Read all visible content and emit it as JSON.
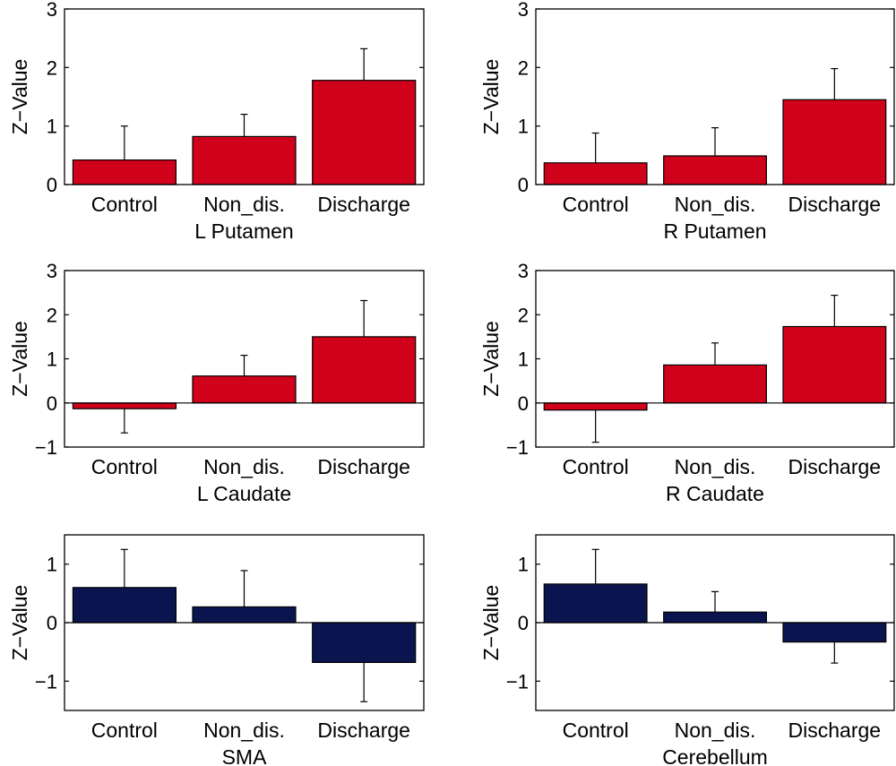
{
  "colors": {
    "red": "#d0021b",
    "navy": "#0a1550",
    "axis": "#000000"
  },
  "chart_data": [
    {
      "type": "bar",
      "title": "L Putamen",
      "ylabel": "Z−Value",
      "categories": [
        "Control",
        "Non_dis.",
        "Discharge"
      ],
      "values": [
        0.42,
        0.82,
        1.78
      ],
      "errors": [
        0.58,
        0.38,
        0.54
      ],
      "ylim": [
        0,
        3
      ],
      "yticks": [
        0,
        1,
        2,
        3
      ],
      "ytick_labels": [
        "0",
        "1",
        "2",
        "3"
      ],
      "color": "#d0021b"
    },
    {
      "type": "bar",
      "title": "R Putamen",
      "ylabel": "Z−Value",
      "categories": [
        "Control",
        "Non_dis.",
        "Discharge"
      ],
      "values": [
        0.37,
        0.49,
        1.45
      ],
      "errors": [
        0.51,
        0.48,
        0.53
      ],
      "ylim": [
        0,
        3
      ],
      "yticks": [
        0,
        1,
        2,
        3
      ],
      "ytick_labels": [
        "0",
        "1",
        "2",
        "3"
      ],
      "color": "#d0021b"
    },
    {
      "type": "bar",
      "title": "L Caudate",
      "ylabel": "Z−Value",
      "categories": [
        "Control",
        "Non_dis.",
        "Discharge"
      ],
      "values": [
        -0.13,
        0.61,
        1.5
      ],
      "errors": [
        0.55,
        0.47,
        0.82
      ],
      "ylim": [
        -1,
        3
      ],
      "yticks": [
        -1,
        0,
        1,
        2,
        3
      ],
      "ytick_labels": [
        "−1",
        "0",
        "1",
        "2",
        "3"
      ],
      "color": "#d0021b"
    },
    {
      "type": "bar",
      "title": "R Caudate",
      "ylabel": "Z−Value",
      "categories": [
        "Control",
        "Non_dis.",
        "Discharge"
      ],
      "values": [
        -0.16,
        0.86,
        1.73
      ],
      "errors": [
        0.73,
        0.5,
        0.71
      ],
      "ylim": [
        -1,
        3
      ],
      "yticks": [
        -1,
        0,
        1,
        2,
        3
      ],
      "ytick_labels": [
        "−1",
        "0",
        "1",
        "2",
        "3"
      ],
      "color": "#d0021b"
    },
    {
      "type": "bar",
      "title": "SMA",
      "ylabel": "Z−Value",
      "categories": [
        "Control",
        "Non_dis.",
        "Discharge"
      ],
      "values": [
        0.6,
        0.27,
        -0.68
      ],
      "errors": [
        0.65,
        0.62,
        0.67
      ],
      "ylim": [
        -1.5,
        1.5
      ],
      "yticks": [
        -1,
        0,
        1
      ],
      "ytick_labels": [
        "−1",
        "0",
        "1"
      ],
      "color": "#0a1550"
    },
    {
      "type": "bar",
      "title": "Cerebellum",
      "ylabel": "Z−Value",
      "categories": [
        "Control",
        "Non_dis.",
        "Discharge"
      ],
      "values": [
        0.66,
        0.18,
        -0.33
      ],
      "errors": [
        0.59,
        0.35,
        0.36
      ],
      "ylim": [
        -1.5,
        1.5
      ],
      "yticks": [
        -1,
        0,
        1
      ],
      "ytick_labels": [
        "−1",
        "0",
        "1"
      ],
      "color": "#0a1550"
    }
  ]
}
